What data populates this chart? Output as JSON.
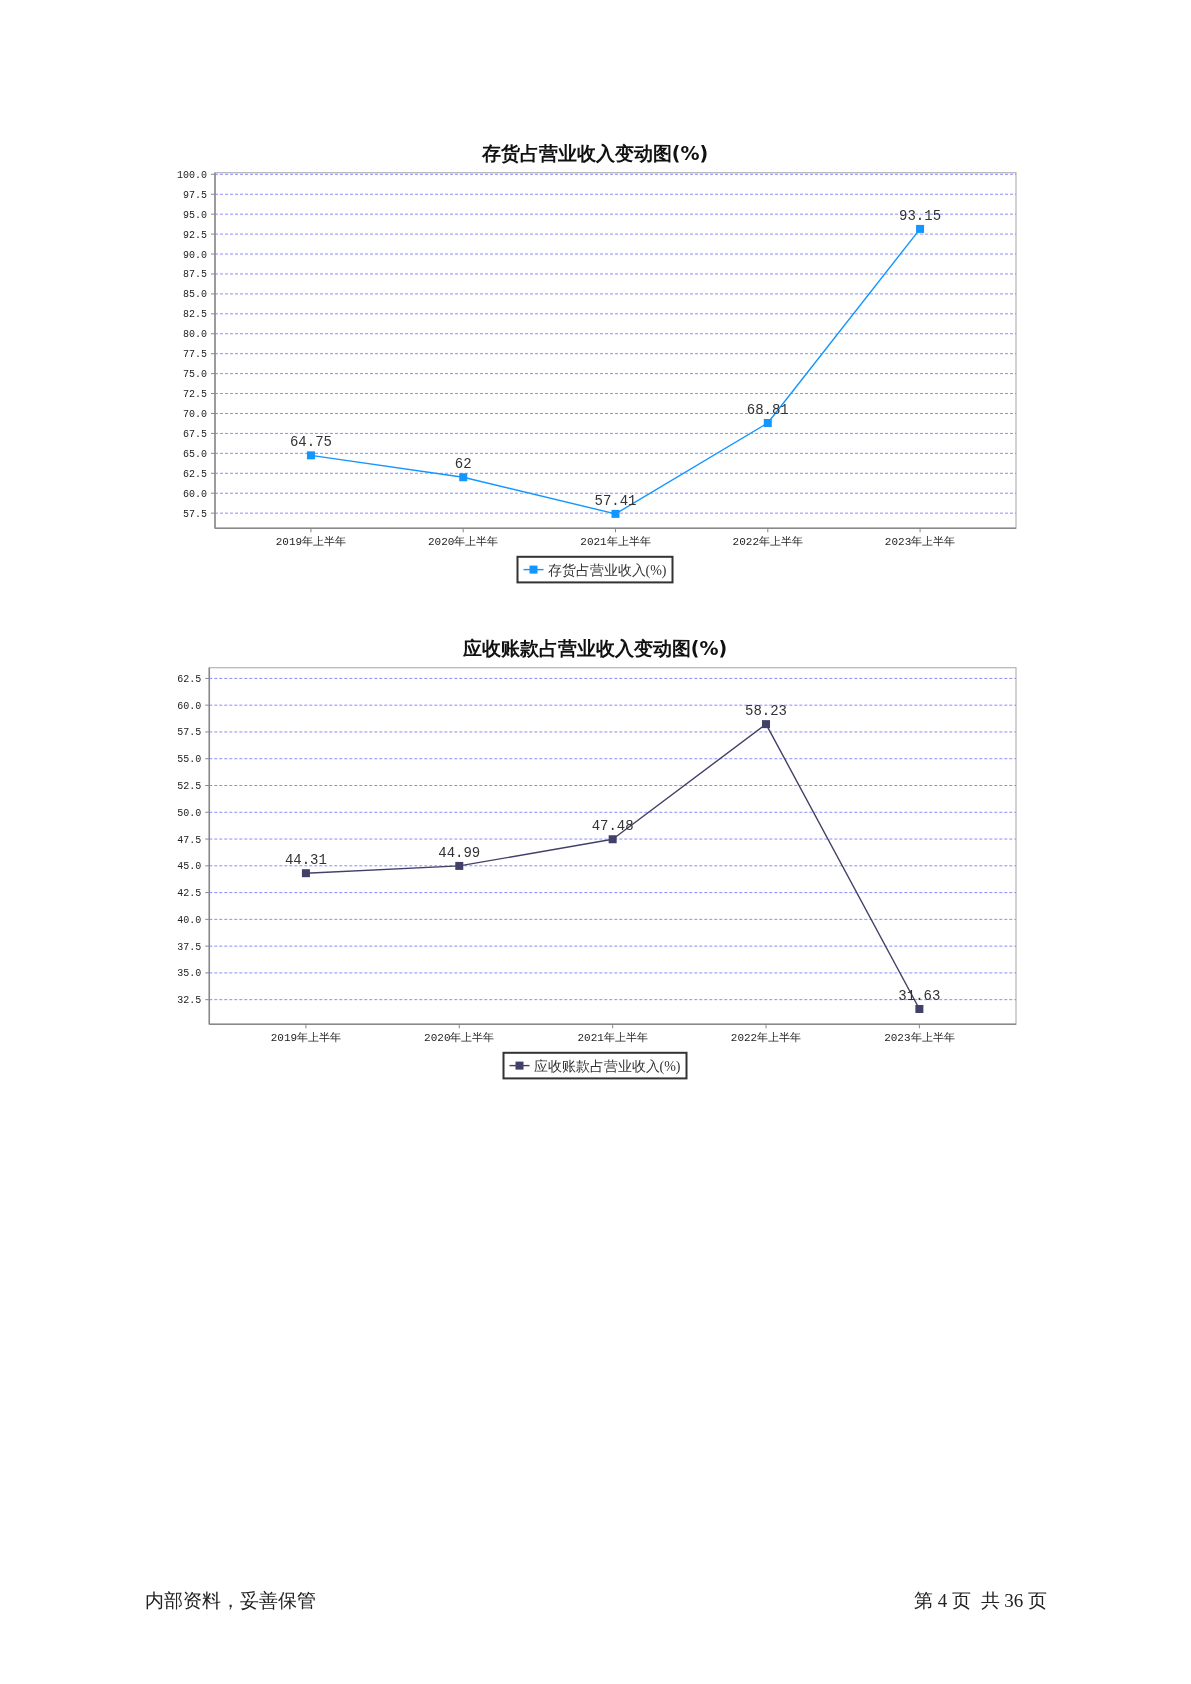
{
  "chart_data": [
    {
      "type": "line",
      "title": "存货占营业收入变动图(%)",
      "categories": [
        "2019年上半年",
        "2020年上半年",
        "2021年上半年",
        "2022年上半年",
        "2023年上半年"
      ],
      "series": [
        {
          "name": "存货占营业收入(%)",
          "color": "#1496ff",
          "values": [
            64.75,
            62,
            57.41,
            68.81,
            93.15
          ]
        }
      ],
      "ylim": [
        55.6,
        100.2
      ],
      "yticks": [
        57.5,
        {
          "value": 60,
          "label": "60.0"
        },
        62.5,
        {
          "value": 65,
          "label": "65.0"
        },
        67.5,
        {
          "value": 70,
          "label": "70.0"
        },
        72.5,
        {
          "value": 75,
          "label": "75.0"
        },
        77.5,
        {
          "value": 80,
          "label": "80.0"
        },
        82.5,
        {
          "value": 85,
          "label": "85.0"
        },
        87.5,
        {
          "value": 90,
          "label": "90.0"
        },
        92.5,
        {
          "value": 95,
          "label": "95.0"
        },
        97.5,
        {
          "value": 100,
          "label": "100.0"
        }
      ],
      "grid": "y",
      "legend": "bottom",
      "marker": "square",
      "line_style": "solid",
      "data_labels": true
    },
    {
      "type": "line",
      "title": "应收账款占营业收入变动图(%)",
      "categories": [
        "2019年上半年",
        "2020年上半年",
        "2021年上半年",
        "2022年上半年",
        "2023年上半年"
      ],
      "series": [
        {
          "name": "应收账款占营业收入(%)",
          "color": "#404068",
          "values": [
            44.31,
            44.99,
            47.48,
            58.23,
            31.63
          ]
        }
      ],
      "ylim": [
        30.2,
        63.5
      ],
      "yticks": [
        32.5,
        {
          "value": 35,
          "label": "35.0"
        },
        37.5,
        {
          "value": 40,
          "label": "40.0"
        },
        42.5,
        {
          "value": 45,
          "label": "45.0"
        },
        47.5,
        {
          "value": 50,
          "label": "50.0"
        },
        52.5,
        {
          "value": 55,
          "label": "55.0"
        },
        57.5,
        {
          "value": 60,
          "label": "60.0"
        },
        62.5
      ],
      "grid": "y",
      "legend": "bottom",
      "marker": "square",
      "line_style": "solid",
      "data_labels": true
    },
    {
      "type": "other",
      "annotations": [
        "内部资料，妥善保管",
        "第 4 页  共 36 页"
      ]
    }
  ]
}
